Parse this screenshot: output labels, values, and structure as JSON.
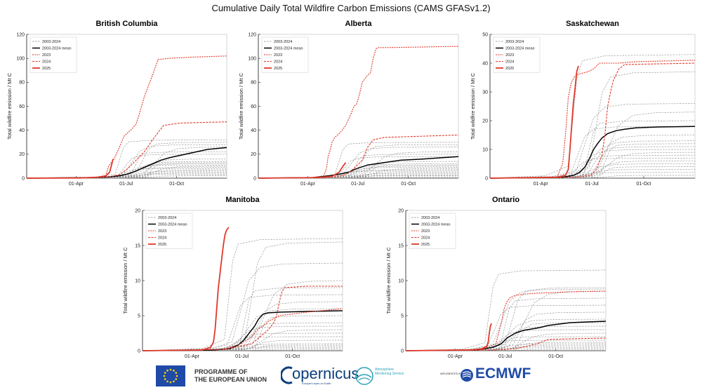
{
  "title": "Cumulative Daily Total Wildfire Carbon Emissions (CAMS GFASv1.2)",
  "footer": {
    "eu_line1": "PROGRAMME OF",
    "eu_line2": "THE EUROPEAN UNION",
    "copernicus": "opernicus",
    "copernicus_sub": "Europe's eyes on Earth",
    "ams_line1": "Atmosphere",
    "ams_line2": "Monitoring Service",
    "implemented_by": "IMPLEMENTED BY",
    "ecmwf": "ECMWF"
  },
  "colors": {
    "historical": "#8c8c8c",
    "mean": "#000000",
    "y2023": "#e0392b",
    "y2024": "#e0392b",
    "y2025": "#e0392b"
  },
  "chart_data": [
    {
      "type": "line",
      "title": "British Columbia",
      "ylabel": "Total wildfire emission / Mt C",
      "ylim": [
        0,
        120
      ],
      "yticks": [
        0,
        20,
        40,
        60,
        80,
        100,
        120
      ],
      "xlim": [
        1,
        365
      ],
      "xticks": [
        {
          "day": 91,
          "label": "01-Apr"
        },
        {
          "day": 182,
          "label": "01-Jul"
        },
        {
          "day": 274,
          "label": "01-Oct"
        }
      ],
      "legend": {
        "position": "top-left",
        "entries": [
          "2003-2024",
          "2003-2024 mean",
          "2023",
          "2024",
          "2025"
        ]
      },
      "series": [
        {
          "name": "2003-2024",
          "style": "historical",
          "finals": [
            32,
            30,
            28,
            26,
            22,
            20,
            16,
            14,
            13,
            12,
            11,
            10,
            9,
            8,
            7,
            6,
            5,
            4,
            3,
            2
          ],
          "start_day": 182
        },
        {
          "name": "2003-2024 mean",
          "style": "mean",
          "x": [
            1,
            120,
            150,
            170,
            185,
            200,
            215,
            230,
            245,
            260,
            275,
            300,
            330,
            365
          ],
          "y": [
            0,
            0.5,
            1,
            2,
            3.5,
            6,
            9,
            12,
            15,
            17,
            18.5,
            21,
            24,
            25.5
          ]
        },
        {
          "name": "2023",
          "style": "y2023",
          "x": [
            1,
            100,
            130,
            145,
            150,
            160,
            170,
            178,
            185,
            190,
            200,
            205,
            210,
            215,
            220,
            225,
            230,
            240,
            260,
            300,
            365
          ],
          "y": [
            0,
            0.2,
            1,
            2,
            10,
            16,
            26,
            35,
            38,
            40,
            45,
            52,
            60,
            68,
            74,
            80,
            86,
            99,
            100,
            101,
            102
          ]
        },
        {
          "name": "2024",
          "style": "y2024",
          "x": [
            1,
            120,
            150,
            170,
            185,
            200,
            215,
            230,
            250,
            280,
            365
          ],
          "y": [
            0,
            0.5,
            1,
            3,
            8,
            15,
            22,
            32,
            44,
            46,
            47
          ]
        },
        {
          "name": "2025",
          "style": "y2025",
          "x": [
            1,
            100,
            130,
            145,
            152,
            156,
            158
          ],
          "y": [
            0,
            0.2,
            0.8,
            2,
            5,
            12,
            16
          ]
        }
      ]
    },
    {
      "type": "line",
      "title": "Alberta",
      "ylabel": "Total wildfire emission / Mt C",
      "ylim": [
        0,
        120
      ],
      "yticks": [
        0,
        20,
        40,
        60,
        80,
        100,
        120
      ],
      "xlim": [
        1,
        365
      ],
      "xticks": [
        {
          "day": 91,
          "label": "01-Apr"
        },
        {
          "day": 182,
          "label": "01-Jul"
        },
        {
          "day": 274,
          "label": "01-Oct"
        }
      ],
      "legend": {
        "position": "top-left",
        "entries": [
          "2003-2024",
          "2003-2024 mean",
          "2023",
          "2024",
          "2025"
        ]
      },
      "series": [
        {
          "name": "2003-2024",
          "style": "historical",
          "finals": [
            30,
            28,
            26,
            22,
            20,
            18,
            14,
            12,
            11,
            10,
            9,
            8,
            7,
            6,
            5,
            4,
            3,
            2,
            2,
            1
          ],
          "start_day": 160
        },
        {
          "name": "2003-2024 mean",
          "style": "mean",
          "x": [
            1,
            100,
            130,
            150,
            165,
            180,
            200,
            230,
            260,
            300,
            365
          ],
          "y": [
            0,
            0.5,
            2,
            3.5,
            5,
            8,
            11,
            13,
            15,
            16,
            18
          ]
        },
        {
          "name": "2023",
          "style": "y2023",
          "x": [
            1,
            100,
            120,
            125,
            128,
            132,
            135,
            140,
            150,
            160,
            170,
            175,
            180,
            185,
            190,
            200,
            205,
            210,
            215,
            220,
            240,
            365
          ],
          "y": [
            0,
            0.5,
            2,
            8,
            18,
            24,
            30,
            34,
            38,
            44,
            54,
            60,
            62,
            70,
            80,
            86,
            88,
            100,
            108,
            109,
            109,
            110
          ]
        },
        {
          "name": "2024",
          "style": "y2024",
          "x": [
            1,
            100,
            140,
            160,
            175,
            190,
            200,
            210,
            230,
            365
          ],
          "y": [
            0,
            0.5,
            1,
            3,
            8,
            15,
            26,
            32,
            34,
            36
          ]
        },
        {
          "name": "2025",
          "style": "y2025",
          "x": [
            1,
            110,
            135,
            148,
            155,
            160
          ],
          "y": [
            0,
            0.5,
            1.5,
            5,
            10,
            13
          ]
        }
      ]
    },
    {
      "type": "line",
      "title": "Saskatchewan",
      "ylabel": "Total wildfire emission / Mt C",
      "ylim": [
        0,
        50
      ],
      "yticks": [
        0,
        10,
        20,
        30,
        40,
        50
      ],
      "xlim": [
        1,
        365
      ],
      "xticks": [
        {
          "day": 91,
          "label": "01-Apr"
        },
        {
          "day": 182,
          "label": "01-Jul"
        },
        {
          "day": 274,
          "label": "01-Oct"
        }
      ],
      "legend": {
        "position": "top-left",
        "entries": [
          "2003-2024",
          "2003-2024 mean",
          "2023",
          "2024",
          "2025"
        ]
      },
      "series": [
        {
          "name": "2003-2024",
          "style": "historical",
          "finals": [
            43,
            37,
            26,
            23,
            20,
            18,
            15,
            13,
            12,
            11,
            10,
            9,
            8,
            7,
            6,
            5,
            4,
            3,
            2,
            1
          ],
          "start_day": 160
        },
        {
          "name": "2003-2024 mean",
          "style": "mean",
          "x": [
            1,
            130,
            150,
            160,
            170,
            178,
            185,
            192,
            200,
            210,
            225,
            240,
            260,
            300,
            365
          ],
          "y": [
            0,
            0.3,
            1,
            2,
            4,
            7,
            10,
            12,
            14,
            15.5,
            16.5,
            17,
            17.5,
            17.8,
            18
          ]
        },
        {
          "name": "2023",
          "style": "y2023",
          "x": [
            1,
            120,
            130,
            135,
            140,
            145,
            150,
            155,
            165,
            175,
            180,
            185,
            190,
            195,
            200,
            210,
            230,
            260,
            365
          ],
          "y": [
            0,
            0.3,
            5,
            15,
            28,
            33,
            35,
            36,
            36.5,
            37,
            37.5,
            38,
            39,
            40,
            40,
            40,
            40,
            40.5,
            41
          ]
        },
        {
          "name": "2024",
          "style": "y2024",
          "x": [
            1,
            150,
            180,
            190,
            200,
            205,
            210,
            215,
            220,
            225,
            230,
            240,
            365
          ],
          "y": [
            0,
            0.3,
            1,
            3,
            8,
            15,
            25,
            30,
            34,
            36,
            38,
            39.5,
            40
          ]
        },
        {
          "name": "2025",
          "style": "y2025",
          "x": [
            1,
            120,
            135,
            140,
            143,
            146,
            149,
            152,
            155,
            158
          ],
          "y": [
            0,
            0.3,
            1,
            3,
            10,
            18,
            26,
            31,
            37,
            39
          ]
        }
      ]
    },
    {
      "type": "line",
      "title": "Manitoba",
      "ylabel": "Total wildfire emission / Mt C",
      "ylim": [
        0,
        20
      ],
      "yticks": [
        0,
        5,
        10,
        15,
        20
      ],
      "xlim": [
        1,
        365
      ],
      "xticks": [
        {
          "day": 91,
          "label": "01-Apr"
        },
        {
          "day": 182,
          "label": "01-Jul"
        },
        {
          "day": 274,
          "label": "01-Oct"
        }
      ],
      "legend": {
        "position": "top-left",
        "entries": [
          "2003-2024",
          "2003-2024 mean",
          "2023",
          "2024",
          "2025"
        ]
      },
      "series": [
        {
          "name": "2003-2024",
          "style": "historical",
          "finals": [
            16,
            15.5,
            12.5,
            10,
            9,
            8,
            7,
            6,
            5,
            4,
            3.5,
            3,
            2.5,
            2,
            1.5,
            1,
            0.8,
            0.6,
            0.4,
            0.2
          ],
          "start_day": 170
        },
        {
          "name": "2003-2024 mean",
          "style": "mean",
          "x": [
            1,
            130,
            160,
            175,
            185,
            195,
            205,
            212,
            220,
            230,
            250,
            300,
            365
          ],
          "y": [
            0,
            0.1,
            0.3,
            0.8,
            1.5,
            2.5,
            3.5,
            4.5,
            5.2,
            5.4,
            5.5,
            5.6,
            5.7
          ]
        },
        {
          "name": "2023",
          "style": "y2023",
          "x": [
            1,
            150,
            180,
            200,
            210,
            220,
            225,
            230,
            240,
            250,
            300,
            365
          ],
          "y": [
            0,
            0.2,
            1,
            2,
            3,
            3.5,
            3.8,
            4.2,
            4.6,
            5,
            5.5,
            6
          ]
        },
        {
          "name": "2024",
          "style": "y2024",
          "x": [
            1,
            150,
            200,
            215,
            230,
            240,
            245,
            250,
            255,
            260,
            280,
            300,
            365
          ],
          "y": [
            0,
            0.2,
            1,
            2,
            3,
            4,
            5,
            7,
            8.5,
            9,
            9.1,
            9.2,
            9.2
          ]
        },
        {
          "name": "2025",
          "style": "y2025",
          "x": [
            1,
            110,
            125,
            130,
            133,
            136,
            139,
            142,
            145,
            148,
            151,
            154,
            158
          ],
          "y": [
            0,
            0.1,
            0.5,
            1.2,
            3,
            6,
            9,
            11,
            13,
            15,
            16.5,
            17.2,
            17.6
          ]
        }
      ]
    },
    {
      "type": "line",
      "title": "Ontario",
      "ylabel": "Total wildfire emission / Mt C",
      "ylim": [
        0,
        20
      ],
      "yticks": [
        0,
        5,
        10,
        15,
        20
      ],
      "xlim": [
        1,
        365
      ],
      "xticks": [
        {
          "day": 91,
          "label": "01-Apr"
        },
        {
          "day": 182,
          "label": "01-Jul"
        },
        {
          "day": 274,
          "label": "01-Oct"
        }
      ],
      "legend": {
        "position": "top-left",
        "entries": [
          "2003-2024",
          "2003-2024 mean",
          "2023",
          "2024",
          "2025"
        ]
      },
      "series": [
        {
          "name": "2003-2024",
          "style": "historical",
          "finals": [
            11.5,
            9,
            8.8,
            8.5,
            7.5,
            6.5,
            5.5,
            4.5,
            4,
            3.5,
            3,
            2.5,
            2,
            1.5,
            1.2,
            1,
            0.8,
            0.6,
            0.4,
            0.2
          ],
          "start_day": 165
        },
        {
          "name": "2003-2024 mean",
          "style": "mean",
          "x": [
            1,
            130,
            160,
            175,
            185,
            200,
            215,
            230,
            245,
            260,
            280,
            300,
            330,
            365
          ],
          "y": [
            0,
            0.1,
            0.5,
            1,
            1.8,
            2.5,
            2.9,
            3.1,
            3.3,
            3.6,
            3.8,
            4,
            4.1,
            4.2
          ]
        },
        {
          "name": "2023",
          "style": "y2023",
          "x": [
            1,
            140,
            165,
            175,
            180,
            185,
            190,
            195,
            200,
            210,
            220,
            240,
            270,
            300,
            365
          ],
          "y": [
            0,
            0.2,
            1,
            4,
            6,
            7,
            7.5,
            7.7,
            7.9,
            8,
            8.1,
            8.2,
            8.3,
            8.4,
            8.5
          ]
        },
        {
          "name": "2024",
          "style": "y2024",
          "x": [
            1,
            160,
            200,
            220,
            240,
            250,
            260,
            300,
            365
          ],
          "y": [
            0,
            0.1,
            0.3,
            0.6,
            1,
            1.3,
            1.6,
            1.7,
            1.8
          ]
        },
        {
          "name": "2025",
          "style": "y2025",
          "x": [
            1,
            120,
            140,
            148,
            151,
            153,
            155,
            157
          ],
          "y": [
            0,
            0.1,
            0.3,
            0.6,
            1.2,
            2.5,
            3.5,
            3.9
          ]
        }
      ]
    }
  ]
}
